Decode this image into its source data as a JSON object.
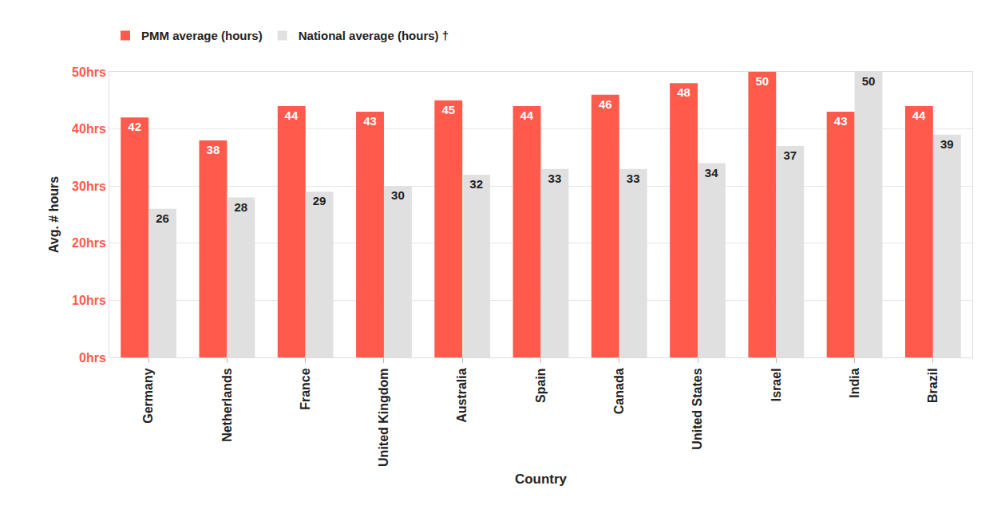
{
  "chart_data": {
    "type": "bar",
    "x_label": "Country",
    "y_label": "Avg. # hours",
    "categories": [
      "Germany",
      "Netherlands",
      "France",
      "United Kingdom",
      "Australia",
      "Spain",
      "Canada",
      "United States",
      "Israel",
      "India",
      "Brazil"
    ],
    "series": [
      {
        "name": "PMM average (hours)",
        "color": "#ff5a4b",
        "values": [
          42,
          38,
          44,
          43,
          45,
          44,
          46,
          48,
          50,
          43,
          44
        ]
      },
      {
        "name": "National average (hours) †",
        "color": "#e0e0e0",
        "values": [
          26,
          28,
          29,
          30,
          32,
          33,
          33,
          34,
          37,
          50,
          39
        ]
      }
    ],
    "ylim": [
      0,
      50
    ],
    "yticks": [
      {
        "value": 0,
        "label": "0hrs"
      },
      {
        "value": 10,
        "label": "10hrs"
      },
      {
        "value": 20,
        "label": "20hrs"
      },
      {
        "value": 30,
        "label": "30hrs"
      },
      {
        "value": 40,
        "label": "40hrs"
      },
      {
        "value": 50,
        "label": "50hrs"
      }
    ],
    "grid": true,
    "legend": "top-left",
    "data_labels": true
  }
}
